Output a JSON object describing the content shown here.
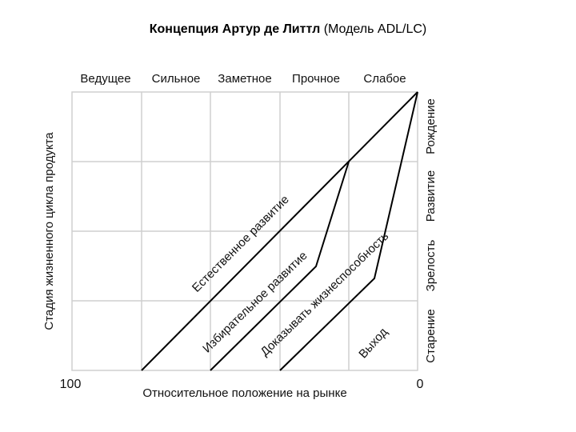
{
  "title": {
    "bold": "Концепция Артур де Литтл",
    "normal": " (Модель ADL/LC)"
  },
  "positions": [
    "Ведущее",
    "Сильное",
    "Заметное",
    "Прочное",
    "Слабое"
  ],
  "stages": [
    "Рождение",
    "Развитие",
    "Зрелость",
    "Старение"
  ],
  "y_axis_label": "Стадия жизненного цикла продукта",
  "x_axis_label": "Относительное положение на рынке",
  "x_axis_left": "100",
  "x_axis_right": "0",
  "paths": [
    "Естественное развитие",
    "Избирательное развитие",
    "Доказывать жизнеспособность",
    "Выход"
  ]
}
